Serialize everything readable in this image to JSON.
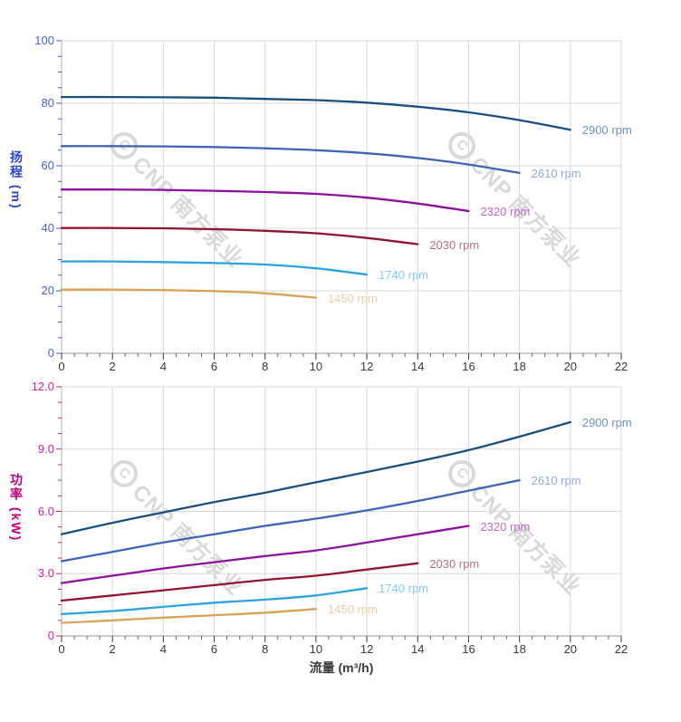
{
  "watermark": {
    "logo_letter": "C",
    "text": "CNP 南方泵业"
  },
  "x_axis_title": "流量 (m³/h)",
  "chart_data": [
    {
      "type": "line",
      "title": "",
      "xlabel": "流量 (m³/h)",
      "ylabel": "扬程 (m)",
      "xlim": [
        0,
        22
      ],
      "ylim": [
        0,
        100
      ],
      "grid": true,
      "legend_position": "curve-end-right",
      "x_ticks": [
        "0",
        "2",
        "4",
        "6",
        "8",
        "10",
        "12",
        "14",
        "16",
        "18",
        "20",
        "22"
      ],
      "y_ticks": [
        "0",
        "20",
        "40",
        "60",
        "80",
        "100"
      ],
      "x_tick_color": "#3a3a3a",
      "y_tick_color": "#4a5fd0",
      "ylabel_color": "#2b46c8",
      "series": [
        {
          "name": "2900 rpm",
          "color": "#1b4f7e",
          "label_color": "#6f93ba",
          "points": [
            [
              0,
              82
            ],
            [
              2,
              82
            ],
            [
              4,
              81.9
            ],
            [
              6,
              81.8
            ],
            [
              8,
              81.4
            ],
            [
              10,
              81
            ],
            [
              12,
              80.2
            ],
            [
              14,
              78.9
            ],
            [
              16,
              77.1
            ],
            [
              18,
              74.6
            ],
            [
              20,
              71.5
            ]
          ]
        },
        {
          "name": "2610 rpm",
          "color": "#3f63b5",
          "label_color": "#96abdc",
          "points": [
            [
              0,
              66.3
            ],
            [
              2,
              66.3
            ],
            [
              4,
              66.2
            ],
            [
              6,
              66
            ],
            [
              8,
              65.6
            ],
            [
              10,
              65
            ],
            [
              12,
              64
            ],
            [
              14,
              62.5
            ],
            [
              16,
              60.4
            ],
            [
              18,
              57.7
            ]
          ]
        },
        {
          "name": "2320 rpm",
          "color": "#8e0f9e",
          "label_color": "#bb6cc4",
          "points": [
            [
              0,
              52.4
            ],
            [
              2,
              52.4
            ],
            [
              4,
              52.3
            ],
            [
              6,
              52
            ],
            [
              8,
              51.6
            ],
            [
              10,
              51
            ],
            [
              12,
              49.8
            ],
            [
              14,
              47.9
            ],
            [
              16,
              45.5
            ]
          ]
        },
        {
          "name": "2030 rpm",
          "color": "#921332",
          "label_color": "#b4718b",
          "points": [
            [
              0,
              40.1
            ],
            [
              2,
              40.1
            ],
            [
              4,
              40
            ],
            [
              6,
              39.7
            ],
            [
              8,
              39.2
            ],
            [
              10,
              38.4
            ],
            [
              12,
              36.9
            ],
            [
              14,
              34.9
            ]
          ]
        },
        {
          "name": "1740 rpm",
          "color": "#2da2e0",
          "label_color": "#85c9ef",
          "points": [
            [
              0,
              29.4
            ],
            [
              2,
              29.4
            ],
            [
              4,
              29.2
            ],
            [
              6,
              28.9
            ],
            [
              8,
              28.4
            ],
            [
              10,
              27.2
            ],
            [
              12,
              25.2
            ]
          ]
        },
        {
          "name": "1450 rpm",
          "color": "#d8a258",
          "label_color": "#e9cea4",
          "points": [
            [
              0,
              20.4
            ],
            [
              2,
              20.4
            ],
            [
              4,
              20.2
            ],
            [
              6,
              19.9
            ],
            [
              8,
              19.2
            ],
            [
              10,
              17.8
            ]
          ]
        }
      ]
    },
    {
      "type": "line",
      "title": "",
      "xlabel": "流量 (m³/h)",
      "ylabel": "功率 (kW)",
      "xlim": [
        0,
        22
      ],
      "ylim": [
        0,
        12
      ],
      "grid": true,
      "legend_position": "curve-end-right",
      "x_ticks": [
        "0",
        "2",
        "4",
        "6",
        "8",
        "10",
        "12",
        "14",
        "16",
        "18",
        "20",
        "22"
      ],
      "y_ticks": [
        "0",
        "3.0",
        "6.0",
        "9.0",
        "12.0"
      ],
      "x_tick_color": "#3a3a3a",
      "y_tick_color": "#d6218f",
      "ylabel_color": "#c0007f",
      "series": [
        {
          "name": "2900 rpm",
          "color": "#1b4f7e",
          "label_color": "#6f93ba",
          "points": [
            [
              0,
              4.9
            ],
            [
              2,
              5.45
            ],
            [
              4,
              5.95
            ],
            [
              6,
              6.45
            ],
            [
              8,
              6.9
            ],
            [
              10,
              7.4
            ],
            [
              12,
              7.9
            ],
            [
              14,
              8.4
            ],
            [
              16,
              8.95
            ],
            [
              18,
              9.6
            ],
            [
              20,
              10.3
            ]
          ]
        },
        {
          "name": "2610 rpm",
          "color": "#3f63b5",
          "label_color": "#96abdc",
          "points": [
            [
              0,
              3.6
            ],
            [
              2,
              4.05
            ],
            [
              4,
              4.5
            ],
            [
              6,
              4.9
            ],
            [
              8,
              5.3
            ],
            [
              10,
              5.65
            ],
            [
              12,
              6.05
            ],
            [
              14,
              6.5
            ],
            [
              16,
              7.0
            ],
            [
              18,
              7.5
            ]
          ]
        },
        {
          "name": "2320 rpm",
          "color": "#8e0f9e",
          "label_color": "#bb6cc4",
          "points": [
            [
              0,
              2.55
            ],
            [
              2,
              2.9
            ],
            [
              4,
              3.25
            ],
            [
              6,
              3.55
            ],
            [
              8,
              3.85
            ],
            [
              10,
              4.12
            ],
            [
              12,
              4.5
            ],
            [
              14,
              4.9
            ],
            [
              16,
              5.3
            ]
          ]
        },
        {
          "name": "2030 rpm",
          "color": "#921332",
          "label_color": "#b4718b",
          "points": [
            [
              0,
              1.7
            ],
            [
              2,
              1.95
            ],
            [
              4,
              2.2
            ],
            [
              6,
              2.45
            ],
            [
              8,
              2.7
            ],
            [
              10,
              2.9
            ],
            [
              12,
              3.2
            ],
            [
              14,
              3.5
            ]
          ]
        },
        {
          "name": "1740 rpm",
          "color": "#2da2e0",
          "label_color": "#85c9ef",
          "points": [
            [
              0,
              1.05
            ],
            [
              2,
              1.2
            ],
            [
              4,
              1.4
            ],
            [
              6,
              1.6
            ],
            [
              8,
              1.75
            ],
            [
              10,
              1.95
            ],
            [
              12,
              2.3
            ]
          ]
        },
        {
          "name": "1450 rpm",
          "color": "#d8a258",
          "label_color": "#e9cea4",
          "points": [
            [
              0,
              0.63
            ],
            [
              2,
              0.75
            ],
            [
              4,
              0.88
            ],
            [
              6,
              1.0
            ],
            [
              8,
              1.12
            ],
            [
              10,
              1.3
            ]
          ]
        }
      ]
    }
  ]
}
